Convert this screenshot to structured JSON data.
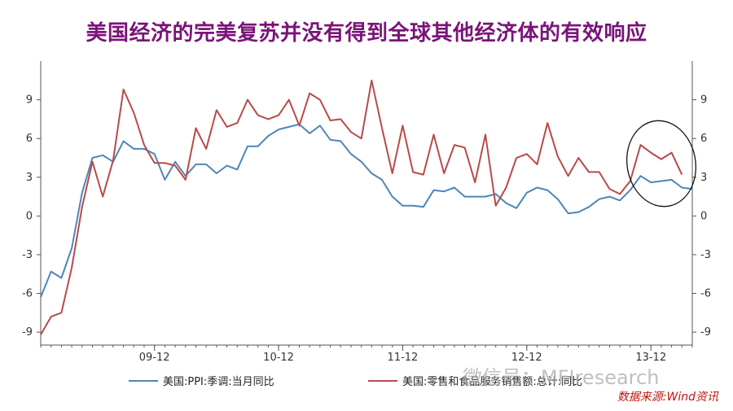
{
  "title": "美国经济的完美复苏并没有得到全球其他经济体的有效响应",
  "source": "数据来源:Wind资讯",
  "watermark": "微信号：MFIresearch",
  "colors": {
    "title": "#7a1478",
    "ppi": "#4e86b8",
    "retail": "#b94a48",
    "source": "#c0140f"
  },
  "chart_data": {
    "type": "line",
    "x_ticks": [
      "09-12",
      "10-12",
      "11-12",
      "12-12",
      "13-12"
    ],
    "x_tick_index": [
      11,
      23,
      35,
      47,
      59
    ],
    "ylim": [
      -10,
      12
    ],
    "y_ticks": [
      9,
      6,
      3,
      0,
      -3,
      -6,
      -9
    ],
    "y_tick_labels": [
      "9",
      "6",
      "3",
      "0",
      "-3",
      "-6",
      "-9"
    ],
    "grid": false,
    "legend_position": "bottom",
    "series": [
      {
        "name": "美国:PPI:季调:当月同比",
        "values": [
          -6.3,
          -4.3,
          -4.8,
          -2.5,
          1.8,
          4.5,
          4.7,
          4.2,
          5.8,
          5.2,
          5.2,
          4.8,
          2.8,
          4.2,
          3.1,
          4.0,
          4.0,
          3.3,
          3.9,
          3.6,
          5.4,
          5.4,
          6.2,
          6.7,
          6.9,
          7.1,
          6.4,
          7.0,
          5.9,
          5.8,
          4.8,
          4.2,
          3.3,
          2.8,
          1.5,
          0.8,
          0.8,
          0.7,
          2.0,
          1.9,
          2.2,
          1.5,
          1.5,
          1.5,
          1.7,
          1.0,
          0.6,
          1.8,
          2.2,
          2.0,
          1.3,
          0.2,
          0.3,
          0.7,
          1.3,
          1.5,
          1.2,
          2.0,
          3.1,
          2.6,
          2.7,
          2.8,
          2.2,
          2.1
        ]
      },
      {
        "name": "美国:零售和食品服务销售额:总计:同比",
        "values": [
          -9.2,
          -7.8,
          -7.5,
          -4.0,
          0.7,
          4.2,
          1.5,
          4.3,
          9.8,
          8.0,
          5.5,
          4.1,
          4.1,
          3.9,
          2.8,
          6.8,
          5.2,
          8.2,
          6.9,
          7.2,
          9.0,
          7.8,
          7.5,
          7.8,
          9.0,
          7.0,
          9.5,
          9.0,
          7.4,
          7.5,
          6.5,
          6.0,
          10.5,
          6.8,
          3.3,
          7.0,
          3.4,
          3.2,
          6.3,
          3.3,
          5.5,
          5.3,
          2.6,
          6.3,
          0.8,
          2.2,
          4.5,
          4.8,
          4.0,
          7.2,
          4.6,
          3.1,
          4.5,
          3.4,
          3.4,
          2.1,
          1.7,
          2.7,
          5.5,
          4.9,
          4.4,
          4.9,
          3.2
        ]
      }
    ]
  }
}
